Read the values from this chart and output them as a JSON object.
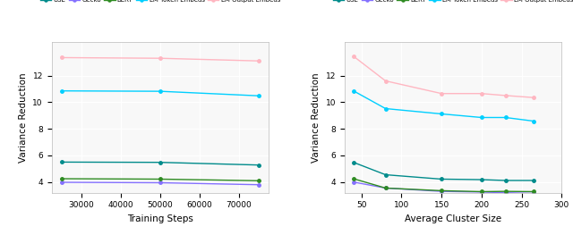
{
  "left": {
    "x": [
      25000,
      50000,
      75000
    ],
    "USE": [
      5.5,
      5.48,
      5.28
    ],
    "Gecko": [
      3.98,
      3.95,
      3.8
    ],
    "BERT": [
      4.25,
      4.22,
      4.1
    ],
    "LM Token Embeds": [
      10.85,
      10.82,
      10.48
    ],
    "LM Output Embeds": [
      13.35,
      13.3,
      13.1
    ],
    "xlabel": "Training Steps",
    "ylabel": "Variance Reduction",
    "xticks": [
      30000,
      40000,
      50000,
      60000,
      70000
    ],
    "ylim": [
      3.2,
      14.5
    ],
    "yticks": [
      4,
      6,
      8,
      10,
      12
    ]
  },
  "right": {
    "x": [
      40,
      80,
      150,
      200,
      230,
      265
    ],
    "USE": [
      5.48,
      4.55,
      4.22,
      4.18,
      4.12,
      4.12
    ],
    "Gecko": [
      4.0,
      3.55,
      3.3,
      3.25,
      3.2,
      3.15
    ],
    "BERT": [
      4.25,
      3.55,
      3.35,
      3.28,
      3.3,
      3.28
    ],
    "LM Token Embeds": [
      10.85,
      9.52,
      9.12,
      8.85,
      8.85,
      8.58
    ],
    "LM Output Embeds": [
      13.45,
      11.6,
      10.65,
      10.65,
      10.5,
      10.35
    ],
    "xlabel": "Average Cluster Size",
    "ylabel": "Variance Reduction",
    "xticks": [
      50,
      100,
      150,
      200,
      250,
      300
    ],
    "ylim": [
      3.2,
      14.5
    ],
    "yticks": [
      4,
      6,
      8,
      10,
      12
    ]
  },
  "colors": {
    "USE": "#008B8B",
    "Gecko": "#8470FF",
    "BERT": "#2E8B22",
    "LM Token Embeds": "#00CFFF",
    "LM Output Embeds": "#FFB6C1"
  },
  "series_names": [
    "USE",
    "Gecko",
    "BERT",
    "LM Token Embeds",
    "LM Output Embeds"
  ],
  "fig_width": 6.4,
  "fig_height": 2.63,
  "dpi": 100,
  "bg_color": "#ffffff"
}
